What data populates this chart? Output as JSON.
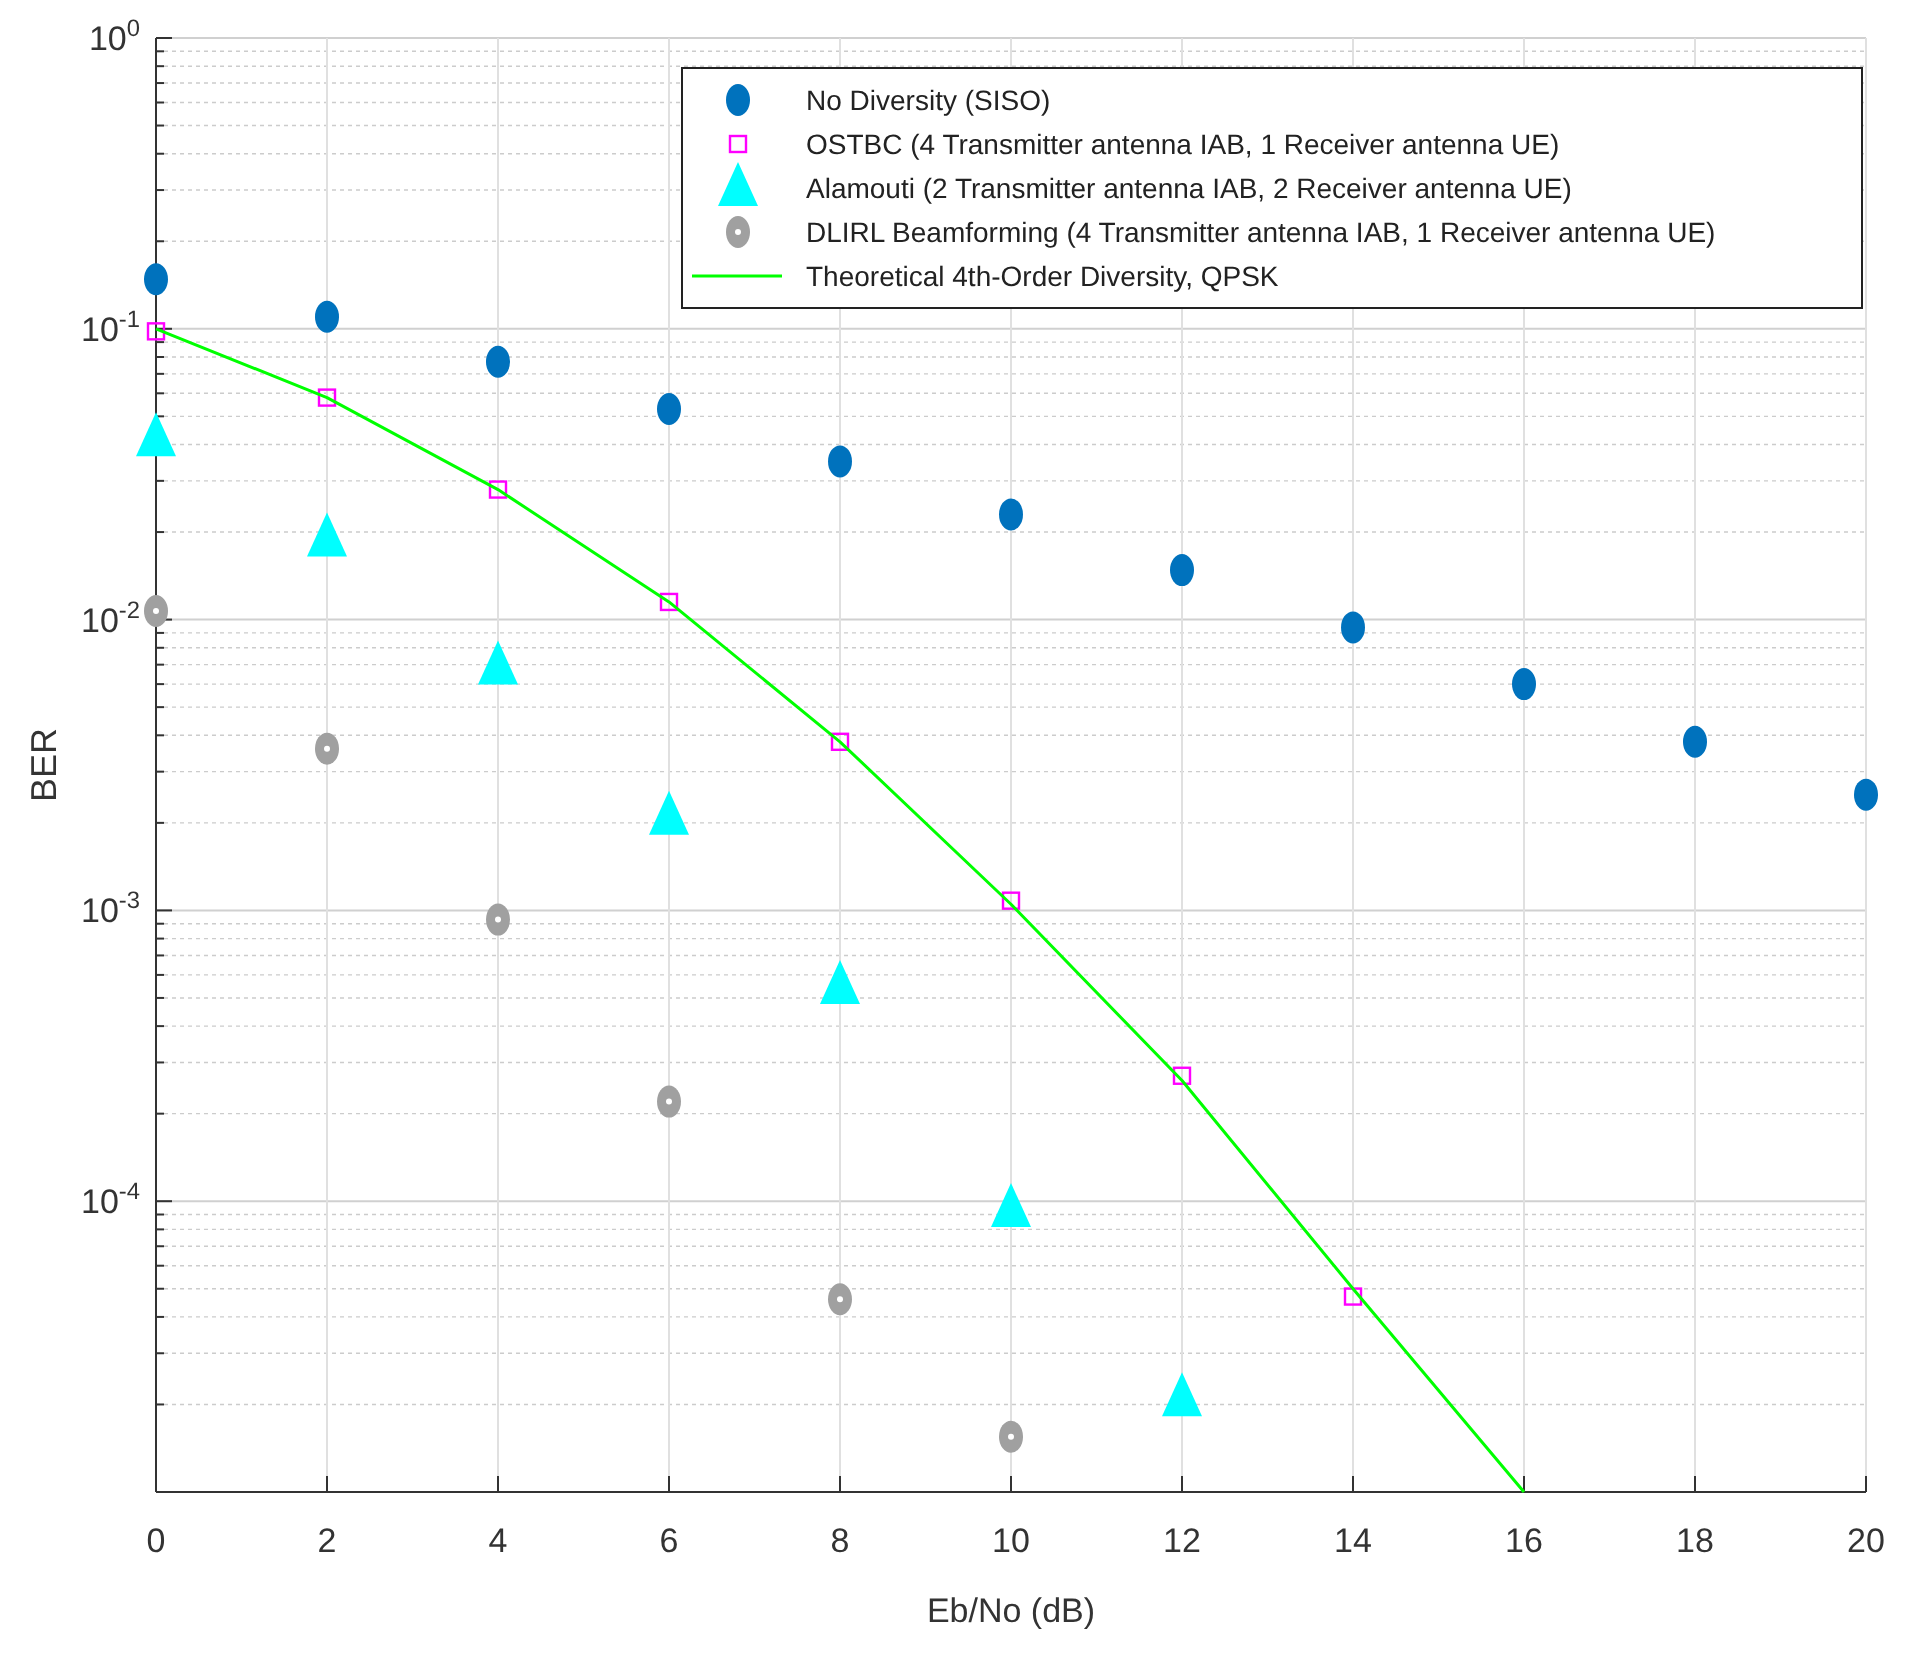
{
  "chart_data": {
    "type": "scatter",
    "xlabel": "Eb/No (dB)",
    "ylabel": "BER",
    "log": "y",
    "grid": true,
    "legend": "top right",
    "xlim": [
      0,
      20
    ],
    "xticks": [
      0,
      2,
      4,
      6,
      8,
      10,
      12,
      14,
      16,
      18,
      20
    ],
    "ylim": [
      1e-05,
      1
    ],
    "yticks": [
      {
        "value": 0.0001,
        "label": "10$^{-4}$"
      },
      {
        "value": 0.001,
        "label": "10$^{-3}$"
      },
      {
        "value": 0.01,
        "label": "10$^{-2}$"
      },
      {
        "value": 0.1,
        "label": "10$^{-1}$"
      },
      {
        "value": 1,
        "label": "10$^{0}$"
      }
    ],
    "series": [
      {
        "name": "No Diversity (SISO)",
        "color": "#0072bd",
        "marker": "circle",
        "x": [
          0,
          2,
          4,
          6,
          8,
          10,
          12,
          14,
          16,
          18,
          20
        ],
        "values": [
          0.148,
          0.11,
          0.077,
          0.053,
          0.035,
          0.023,
          0.0148,
          0.0094,
          0.006,
          0.0038,
          0.0025
        ]
      },
      {
        "name": "OSTBC (4 Transmitter antenna IAB, 1 Receiver antenna UE)",
        "color": "#ff00ff",
        "marker": "square",
        "x": [
          0,
          2,
          4,
          6,
          8,
          10,
          12,
          14
        ],
        "values": [
          0.098,
          0.058,
          0.028,
          0.0115,
          0.0038,
          0.00108,
          0.00027,
          4.7e-05
        ]
      },
      {
        "name": "Alamouti (2 Transmitter antenna IAB, 2 Receiver antenna UE)",
        "color": "#00ffff",
        "marker": "triangle",
        "x": [
          0,
          2,
          4,
          6,
          8,
          10,
          12
        ],
        "values": [
          0.042,
          0.019,
          0.0069,
          0.0021,
          0.00055,
          9.4e-05,
          2.1e-05
        ]
      },
      {
        "name": "DLIRL Beamforming (4 Transmitter antenna IAB, 1 Receiver antenna UE)",
        "color": "#a0a0a0",
        "marker": "circle",
        "x": [
          0,
          2,
          4,
          6,
          8,
          10
        ],
        "values": [
          0.0107,
          0.0036,
          0.00093,
          0.00022,
          4.6e-05,
          1.55e-05
        ]
      },
      {
        "name": "Theoretical 4th-Order Diversity, QPSK",
        "type": "line",
        "color": "#00ff00",
        "marker": "none",
        "line_style": "solid",
        "x": [
          0,
          2,
          4,
          6,
          8,
          10,
          12,
          14,
          16
        ],
        "values": [
          0.1,
          0.058,
          0.028,
          0.0115,
          0.0038,
          0.00105,
          0.00026,
          5e-05,
          1e-05
        ]
      }
    ]
  }
}
